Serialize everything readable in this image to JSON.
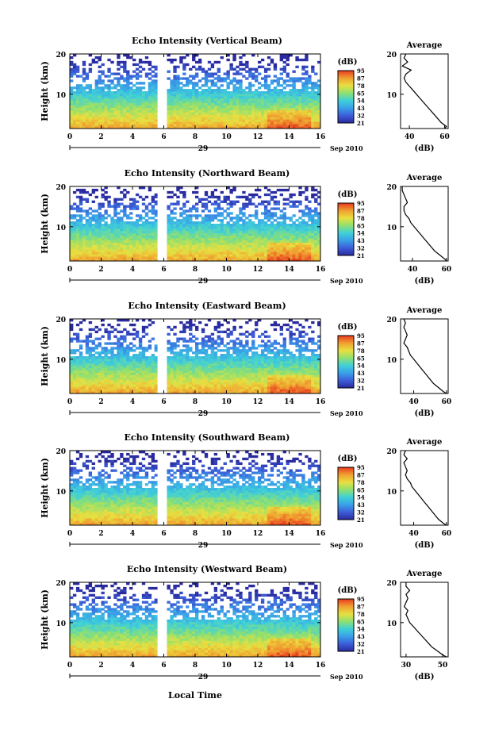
{
  "figure": {
    "date_day": "29",
    "date_month_year": "Sep 2010",
    "xlabel": "Local Time",
    "ylabel": "Height (km)",
    "colorbar_unit": "(dB)",
    "colorbar_ticks": [
      "95",
      "87",
      "78",
      "65",
      "54",
      "43",
      "32",
      "21"
    ],
    "colors": {
      "colormap": [
        "#2a2a9e",
        "#3c5ed8",
        "#3aa0e8",
        "#3fd0d8",
        "#8fe070",
        "#e8e040",
        "#f0a030",
        "#e83a20"
      ],
      "line": "#000000",
      "gap": "#ffffff"
    }
  },
  "chart_data": [
    {
      "type": "heatmap",
      "title": "Echo Intensity (Vertical Beam)",
      "xticks": [
        "0",
        "2",
        "4",
        "6",
        "8",
        "10",
        "12",
        "14",
        "16"
      ],
      "yticks": [
        "10",
        "20"
      ],
      "xlim": [
        0,
        16
      ],
      "ylim": [
        1.5,
        20
      ],
      "clim": [
        21,
        95
      ],
      "data_gap": [
        5.6,
        6.1
      ],
      "profile": {
        "title": "Average",
        "xlabel": "(dB)",
        "xticks": [
          "40",
          "60"
        ],
        "xlim": [
          35,
          62
        ],
        "yticks": [
          "10",
          "20"
        ],
        "height": [
          1.5,
          2,
          3,
          4,
          5,
          6,
          7,
          8,
          9,
          10,
          11,
          12,
          13,
          14,
          15,
          16,
          17,
          18,
          19,
          20
        ],
        "db": [
          60,
          61,
          58,
          56,
          54,
          52,
          50,
          48,
          46,
          44,
          42,
          40,
          38,
          37,
          38,
          41,
          36,
          39,
          37,
          38
        ]
      }
    },
    {
      "type": "heatmap",
      "title": "Echo Intensity (Northward Beam)",
      "xticks": [
        "0",
        "2",
        "4",
        "6",
        "8",
        "10",
        "12",
        "14",
        "16"
      ],
      "yticks": [
        "10",
        "20"
      ],
      "xlim": [
        0,
        16
      ],
      "ylim": [
        1.5,
        20
      ],
      "clim": [
        21,
        95
      ],
      "data_gap": [
        5.6,
        6.1
      ],
      "profile": {
        "title": "Average",
        "xlabel": "(dB)",
        "xticks": [
          "40",
          "60"
        ],
        "xlim": [
          33,
          61
        ],
        "yticks": [
          "10",
          "20"
        ],
        "height": [
          1.5,
          2,
          3,
          4,
          5,
          6,
          7,
          8,
          9,
          10,
          11,
          12,
          13,
          14,
          15,
          16,
          17,
          18,
          19,
          20
        ],
        "db": [
          60,
          59,
          56,
          53,
          51,
          49,
          47,
          45,
          43,
          41,
          39,
          38,
          36,
          35,
          35,
          37,
          36,
          35,
          34,
          34
        ]
      }
    },
    {
      "type": "heatmap",
      "title": "Echo Intensity (Eastward Beam)",
      "xticks": [
        "0",
        "2",
        "4",
        "6",
        "8",
        "10",
        "12",
        "14",
        "16"
      ],
      "yticks": [
        "10",
        "20"
      ],
      "xlim": [
        0,
        16
      ],
      "ylim": [
        1.5,
        20
      ],
      "clim": [
        21,
        95
      ],
      "data_gap": [
        5.6,
        6.1
      ],
      "profile": {
        "title": "Average",
        "xlabel": "(dB)",
        "xticks": [
          "40",
          "60"
        ],
        "xlim": [
          32,
          61
        ],
        "yticks": [
          "10",
          "20"
        ],
        "height": [
          1.5,
          2,
          3,
          4,
          5,
          6,
          7,
          8,
          9,
          10,
          11,
          12,
          13,
          14,
          15,
          16,
          17,
          18,
          19,
          20
        ],
        "db": [
          60,
          58,
          55,
          52,
          50,
          48,
          46,
          44,
          42,
          40,
          38,
          37,
          36,
          34,
          35,
          36,
          35,
          34,
          35,
          34
        ]
      }
    },
    {
      "type": "heatmap",
      "title": "Echo Intensity (Southward Beam)",
      "xticks": [
        "0",
        "2",
        "4",
        "6",
        "8",
        "10",
        "12",
        "14",
        "16"
      ],
      "yticks": [
        "10",
        "20"
      ],
      "xlim": [
        0,
        16
      ],
      "ylim": [
        1.5,
        20
      ],
      "clim": [
        21,
        95
      ],
      "data_gap": [
        5.6,
        6.1
      ],
      "profile": {
        "title": "Average",
        "xlabel": "(dB)",
        "xticks": [
          "40",
          "60"
        ],
        "xlim": [
          32,
          61
        ],
        "yticks": [
          "10",
          "20"
        ],
        "height": [
          1.5,
          2,
          3,
          4,
          5,
          6,
          7,
          8,
          9,
          10,
          11,
          12,
          13,
          14,
          15,
          16,
          17,
          18,
          19,
          20
        ],
        "db": [
          60,
          58,
          55,
          53,
          51,
          49,
          47,
          45,
          43,
          41,
          39,
          38,
          36,
          35,
          36,
          35,
          34,
          36,
          34,
          35
        ]
      }
    },
    {
      "type": "heatmap",
      "title": "Echo Intensity (Westward Beam)",
      "xticks": [
        "0",
        "2",
        "4",
        "6",
        "8",
        "10",
        "12",
        "14",
        "16"
      ],
      "yticks": [
        "10",
        "20"
      ],
      "xlim": [
        0,
        16
      ],
      "ylim": [
        1.5,
        20
      ],
      "clim": [
        21,
        95
      ],
      "data_gap": [
        5.6,
        6.1
      ],
      "profile": {
        "title": "Average",
        "xlabel": "(dB)",
        "xticks": [
          "30",
          "50"
        ],
        "xlim": [
          27,
          53
        ],
        "yticks": [
          "10",
          "20"
        ],
        "height": [
          1.5,
          2,
          3,
          4,
          5,
          6,
          7,
          8,
          9,
          10,
          11,
          12,
          13,
          14,
          15,
          16,
          17,
          18,
          19,
          20
        ],
        "db": [
          52,
          50,
          47,
          44,
          42,
          40,
          38,
          36,
          34,
          32,
          31,
          30,
          31,
          29,
          30,
          31,
          30,
          32,
          30,
          30
        ]
      }
    }
  ]
}
